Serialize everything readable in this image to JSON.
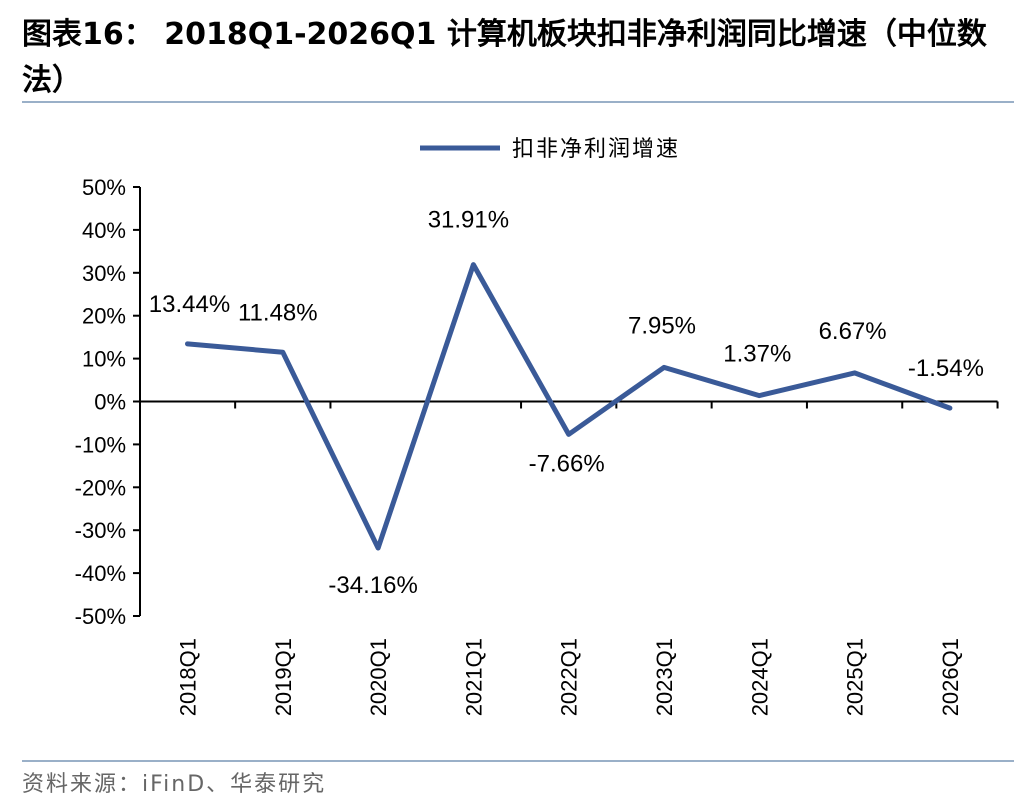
{
  "title": "图表16：  2018Q1-2026Q1  计算机板块扣非净利润同比增速（中位数法）",
  "source": "资料来源：iFinD、华泰研究",
  "chart_data": {
    "type": "line",
    "categories": [
      "2018Q1",
      "2019Q1",
      "2020Q1",
      "2021Q1",
      "2022Q1",
      "2023Q1",
      "2024Q1",
      "2025Q1",
      "2026Q1"
    ],
    "series": [
      {
        "name": "扣非净利润增速",
        "values": [
          13.44,
          11.48,
          -34.16,
          31.91,
          -7.66,
          7.95,
          1.37,
          6.67,
          -1.54
        ],
        "labels": [
          "13.44%",
          "11.48%",
          "-34.16%",
          "31.91%",
          "-7.66%",
          "7.95%",
          "1.37%",
          "6.67%",
          "-1.54%"
        ],
        "color": "#3a5a98"
      }
    ],
    "yticks": [
      "50%",
      "40%",
      "30%",
      "20%",
      "10%",
      "0%",
      "-10%",
      "-20%",
      "-30%",
      "-40%",
      "-50%"
    ],
    "ylim": [
      -50,
      50
    ],
    "legend": "top-center",
    "grid": false
  }
}
